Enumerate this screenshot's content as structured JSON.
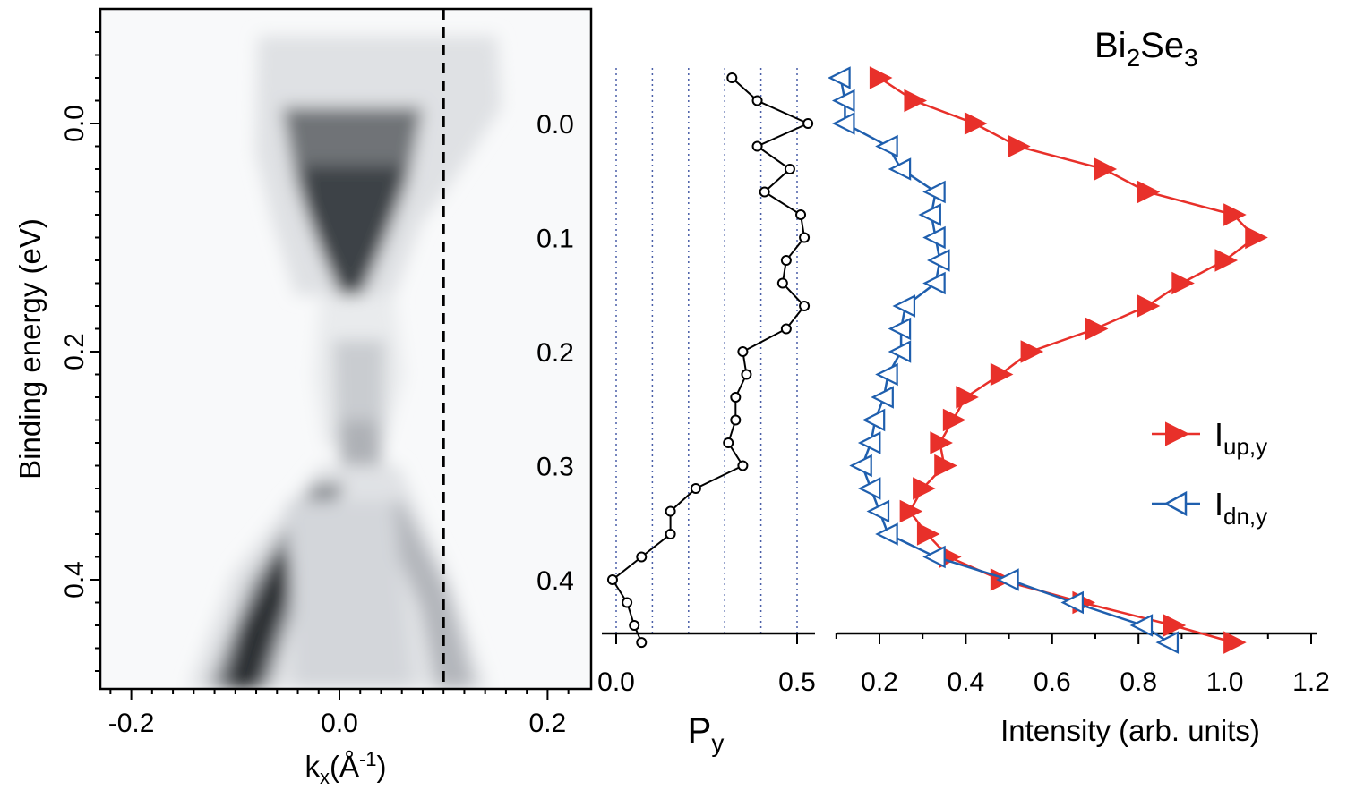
{
  "chart_data": [
    {
      "type": "heatmap",
      "name": "arpes-map",
      "xlabel": "k",
      "xlabel_sub": "x",
      "xlabel_rest": "(Å",
      "xlabel_sup": "-1",
      "xlabel_end": ")",
      "ylabel": "Binding energy (eV)",
      "xlim": [
        -0.235,
        0.24
      ],
      "ylim": [
        -0.1,
        0.5
      ],
      "x_ticks": [
        -0.2,
        0.0,
        0.2
      ],
      "x_tick_labels": [
        "-0.2",
        "0.0",
        "0.2"
      ],
      "y_ticks": [
        0.0,
        0.2,
        0.4
      ],
      "y_tick_labels": [
        "0.0",
        "0.2",
        "0.4"
      ],
      "dashed_line_k": 0.1,
      "colormap": "gray_r"
    },
    {
      "type": "line",
      "name": "polarization",
      "xlabel": "P",
      "xlabel_sub": "y",
      "xlim": [
        -0.01,
        0.535
      ],
      "ylim": [
        -0.1,
        0.5
      ],
      "x_ticks": [
        0.0,
        0.5
      ],
      "x_tick_labels": [
        "0.0",
        "0.5"
      ],
      "y_ticks": [
        0.0,
        0.1,
        0.2,
        0.3,
        0.4
      ],
      "y_tick_labels": [
        "0.0",
        "0.1",
        "0.2",
        "0.3",
        "0.4"
      ],
      "grid_x": [
        0.0,
        0.1,
        0.2,
        0.3,
        0.4,
        0.5
      ],
      "series": [
        {
          "name": "Py",
          "color": "#000000",
          "marker": "circle",
          "x": [
            0.32,
            0.39,
            0.53,
            0.39,
            0.48,
            0.41,
            0.51,
            0.52,
            0.47,
            0.46,
            0.52,
            0.47,
            0.35,
            0.36,
            0.33,
            0.33,
            0.31,
            0.35,
            0.22,
            0.15,
            0.15,
            0.07,
            -0.01,
            0.03,
            0.05,
            0.07
          ],
          "y": [
            -0.04,
            -0.02,
            0.0,
            0.02,
            0.04,
            0.06,
            0.08,
            0.1,
            0.12,
            0.14,
            0.16,
            0.18,
            0.2,
            0.22,
            0.24,
            0.26,
            0.28,
            0.3,
            0.32,
            0.34,
            0.36,
            0.38,
            0.4,
            0.42,
            0.44,
            0.455
          ]
        }
      ]
    },
    {
      "type": "line",
      "name": "intensity",
      "title": "Bi",
      "title_sub1": "2",
      "title_mid": "Se",
      "title_sub2": "3",
      "xlabel": "Intensity (arb. units)",
      "xlim": [
        0.1,
        1.22
      ],
      "ylim": [
        -0.1,
        0.5
      ],
      "x_ticks": [
        0.2,
        0.4,
        0.6,
        0.8,
        1.0,
        1.2
      ],
      "x_tick_labels": [
        "0.2",
        "0.4",
        "0.6",
        "0.8",
        "1.0",
        "1.2"
      ],
      "legend_position": "center-right",
      "series": [
        {
          "name": "I",
          "name_sub": "up,y",
          "color": "#e8302a",
          "marker": "filled-triangle-right",
          "x": [
            0.2,
            0.28,
            0.42,
            0.52,
            0.72,
            0.82,
            1.02,
            1.07,
            1.0,
            0.9,
            0.82,
            0.7,
            0.55,
            0.48,
            0.4,
            0.37,
            0.34,
            0.35,
            0.3,
            0.27,
            0.31,
            0.36,
            0.48,
            0.67,
            0.88,
            1.02
          ],
          "y": [
            -0.04,
            -0.02,
            0.0,
            0.02,
            0.04,
            0.06,
            0.08,
            0.1,
            0.12,
            0.14,
            0.16,
            0.18,
            0.2,
            0.22,
            0.24,
            0.26,
            0.28,
            0.3,
            0.32,
            0.34,
            0.36,
            0.38,
            0.4,
            0.42,
            0.44,
            0.455
          ]
        },
        {
          "name": "I",
          "name_sub": "dn,y",
          "color": "#1f5fae",
          "marker": "open-triangle-left",
          "x": [
            0.11,
            0.12,
            0.12,
            0.22,
            0.25,
            0.33,
            0.32,
            0.33,
            0.34,
            0.33,
            0.26,
            0.25,
            0.25,
            0.22,
            0.21,
            0.19,
            0.18,
            0.16,
            0.18,
            0.2,
            0.22,
            0.33,
            0.5,
            0.65,
            0.81,
            0.87
          ],
          "y": [
            -0.04,
            -0.02,
            0.0,
            0.02,
            0.04,
            0.06,
            0.08,
            0.1,
            0.12,
            0.14,
            0.16,
            0.18,
            0.2,
            0.22,
            0.24,
            0.26,
            0.28,
            0.3,
            0.32,
            0.34,
            0.36,
            0.38,
            0.4,
            0.42,
            0.44,
            0.455
          ]
        }
      ]
    }
  ]
}
